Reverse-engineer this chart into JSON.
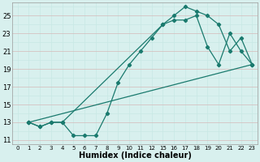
{
  "xtick_labels": [
    "0",
    "1",
    "2",
    "3",
    "4",
    "5",
    "6",
    "7",
    "8",
    "9",
    "10",
    "11",
    "12",
    "15",
    "16",
    "17",
    "18",
    "19",
    "20",
    "21",
    "22",
    "23"
  ],
  "xtick_values": [
    0,
    1,
    2,
    3,
    4,
    5,
    6,
    7,
    8,
    9,
    10,
    11,
    12,
    13,
    14,
    15,
    16,
    17,
    18,
    19,
    20,
    21
  ],
  "line1_xi": [
    1,
    2,
    3,
    4,
    5,
    6,
    7,
    8,
    9,
    10,
    11,
    12,
    13,
    14,
    15,
    16,
    17,
    18,
    19,
    20,
    21
  ],
  "line1_y": [
    13,
    12.5,
    13,
    13,
    11.5,
    11.5,
    11.5,
    14,
    17.5,
    19.5,
    21,
    22.5,
    24,
    25.0,
    26.0,
    25.5,
    25.0,
    24.0,
    21.0,
    22.5,
    19.5
  ],
  "line2_xi": [
    1,
    2,
    3,
    4,
    13,
    14,
    15,
    16,
    17,
    18,
    19,
    20,
    21
  ],
  "line2_y": [
    13,
    12.5,
    13,
    13,
    24.0,
    24.5,
    24.5,
    25.0,
    21.5,
    19.5,
    23.0,
    21.0,
    19.5
  ],
  "line3_xi": [
    1,
    21
  ],
  "line3_y": [
    13,
    19.5
  ],
  "line_color": "#1a7a6e",
  "bg_color": "#d8f0ee",
  "grid_minor_color": "#c8e8e4",
  "grid_major_color": "#d4b8b8",
  "xlabel": "Humidex (Indice chaleur)",
  "xlabel_fontsize": 7,
  "ylim": [
    10.5,
    26.5
  ],
  "yticks": [
    11,
    13,
    15,
    17,
    19,
    21,
    23,
    25
  ]
}
